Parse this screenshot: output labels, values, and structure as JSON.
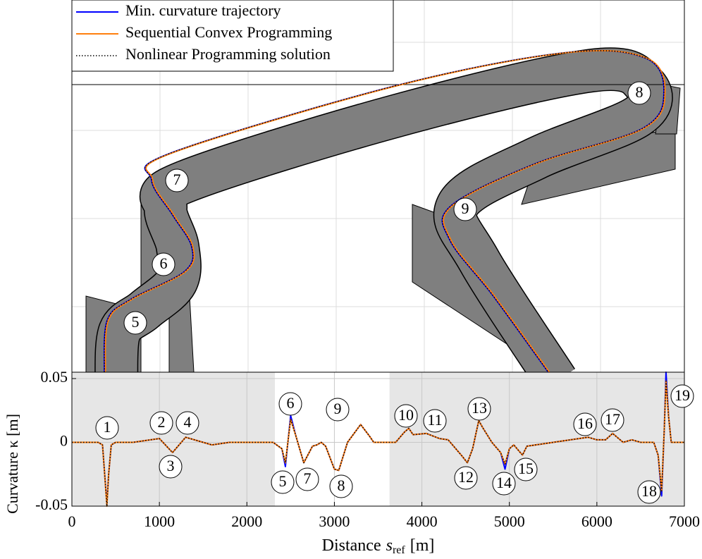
{
  "chart_data": [
    {
      "type": "map",
      "series": [
        {
          "name": "Min. curvature trajectory",
          "color": "#0000ff",
          "style": "solid"
        },
        {
          "name": "Sequential Convex Programming",
          "color": "#ff7f0e",
          "style": "solid"
        },
        {
          "name": "Nonlinear Programming solution",
          "color": "#000000",
          "style": "dotted"
        }
      ],
      "labels": [
        "5",
        "6",
        "7",
        "8",
        "9"
      ]
    },
    {
      "type": "line",
      "xlabel": {
        "text": "Distance",
        "symbol": "s",
        "subscript": "ref",
        "unit": "[m]"
      },
      "ylabel": "Curvature κ [m]",
      "xlim": [
        0,
        7000
      ],
      "ylim": [
        -0.05,
        0.055
      ],
      "xticks": [
        0,
        1000,
        2000,
        3000,
        4000,
        5000,
        6000,
        7000
      ],
      "yticks": [
        -0.05,
        0,
        0.05
      ],
      "grid": true,
      "shaded_regions": [
        [
          0,
          2320
        ],
        [
          3630,
          7000
        ]
      ],
      "x": [
        0,
        300,
        350,
        380,
        400,
        420,
        450,
        500,
        700,
        900,
        1000,
        1150,
        1300,
        1500,
        1600,
        1800,
        2300,
        2400,
        2440,
        2500,
        2560,
        2650,
        2750,
        2800,
        2850,
        2900,
        3000,
        3050,
        3150,
        3300,
        3400,
        3450,
        3700,
        3800,
        3850,
        3900,
        4050,
        4200,
        4300,
        4450,
        4520,
        4580,
        4650,
        4700,
        4800,
        4900,
        4950,
        5000,
        5050,
        5150,
        5200,
        5500,
        5900,
        6000,
        6100,
        6180,
        6300,
        6400,
        6500,
        6650,
        6700,
        6740,
        6770,
        6790,
        6820,
        6850,
        7000
      ],
      "series": [
        {
          "name": "Min. curvature trajectory",
          "color": "#0000ff",
          "style": "solid",
          "values": [
            0,
            0,
            -0.002,
            -0.03,
            -0.048,
            -0.025,
            -0.002,
            0,
            0,
            0.002,
            0.003,
            -0.008,
            0.004,
            0,
            -0.002,
            0,
            0,
            -0.005,
            -0.019,
            0.021,
            0.005,
            -0.016,
            -0.003,
            -0.002,
            0,
            -0.003,
            -0.021,
            -0.022,
            0,
            0.014,
            0.005,
            0,
            0,
            0.008,
            0.011,
            0.006,
            0.007,
            0.003,
            0.002,
            -0.01,
            -0.016,
            -0.005,
            0.017,
            0.011,
            0,
            -0.008,
            -0.021,
            -0.005,
            -0.002,
            -0.01,
            -0.003,
            0,
            0.004,
            0.002,
            0.002,
            0.007,
            0,
            0.002,
            0,
            0,
            -0.01,
            -0.042,
            0.01,
            0.055,
            0.02,
            0,
            0
          ]
        },
        {
          "name": "Sequential Convex Programming",
          "color": "#ff7f0e",
          "style": "solid",
          "values": [
            0,
            0,
            -0.002,
            -0.03,
            -0.05,
            -0.025,
            -0.002,
            0,
            0,
            0.002,
            0.003,
            -0.008,
            0.004,
            0,
            -0.002,
            0,
            0,
            -0.005,
            -0.016,
            0.018,
            0.005,
            -0.016,
            -0.003,
            -0.002,
            0,
            -0.003,
            -0.021,
            -0.022,
            0,
            0.014,
            0.005,
            0,
            0,
            0.008,
            0.011,
            0.006,
            0.007,
            0.003,
            0.002,
            -0.01,
            -0.016,
            -0.005,
            0.017,
            0.011,
            0,
            -0.008,
            -0.017,
            -0.005,
            -0.002,
            -0.01,
            -0.003,
            0,
            0.004,
            0.002,
            0.002,
            0.007,
            0,
            0.002,
            0,
            0,
            -0.01,
            -0.038,
            0.01,
            0.048,
            0.02,
            0,
            0
          ]
        },
        {
          "name": "Nonlinear Programming solution",
          "color": "#000000",
          "style": "dotted",
          "values": [
            0,
            0,
            -0.002,
            -0.03,
            -0.05,
            -0.025,
            -0.002,
            0,
            0,
            0.002,
            0.003,
            -0.008,
            0.004,
            0,
            -0.002,
            0,
            0,
            -0.005,
            -0.016,
            0.018,
            0.005,
            -0.016,
            -0.003,
            -0.002,
            0,
            -0.003,
            -0.021,
            -0.022,
            0,
            0.014,
            0.005,
            0,
            0,
            0.008,
            0.011,
            0.006,
            0.007,
            0.003,
            0.002,
            -0.01,
            -0.016,
            -0.005,
            0.017,
            0.011,
            0,
            -0.008,
            -0.017,
            -0.005,
            -0.002,
            -0.01,
            -0.003,
            0,
            0.004,
            0.002,
            0.002,
            0.007,
            0,
            0.002,
            0,
            0,
            -0.01,
            -0.038,
            0.01,
            0.048,
            0.02,
            0,
            0
          ]
        }
      ],
      "labels": [
        "1",
        "2",
        "3",
        "4",
        "5",
        "6",
        "7",
        "8",
        "9",
        "10",
        "11",
        "12",
        "13",
        "14",
        "15",
        "16",
        "17",
        "18",
        "19"
      ]
    }
  ]
}
